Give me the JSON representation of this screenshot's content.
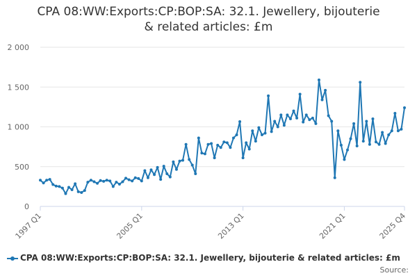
{
  "chart_data": {
    "type": "line",
    "title": "CPA 08:WW:Exports:CP:BOP:SA: 32.1. Jewellery, bijouterie & related articles: £m",
    "title_lines": [
      "CPA 08:WW:Exports:CP:BOP:SA: 32.1. Jewellery, bijouterie",
      "& related articles: £m"
    ],
    "xlabel": "",
    "ylabel": "",
    "ylim": [
      0,
      2000
    ],
    "yticks": [
      0,
      500,
      1000,
      1500,
      2000
    ],
    "ytick_labels": [
      "0",
      "500",
      "1 000",
      "1 500",
      "2 000"
    ],
    "xtick_labels": [
      {
        "label": "1997 Q1",
        "index": 0
      },
      {
        "label": "2005 Q1",
        "index": 32
      },
      {
        "label": "2013 Q1",
        "index": 64
      },
      {
        "label": "2021 Q1",
        "index": 96
      },
      {
        "label": "2025 Q4",
        "index": 115
      }
    ],
    "grid": true,
    "color": "#1f77b4",
    "series": [
      {
        "name": "CPA 08:WW:Exports:CP:BOP:SA: 32.1. Jewellery, bijouterie & related articles: £m",
        "values": [
          330,
          295,
          330,
          340,
          275,
          255,
          250,
          230,
          160,
          240,
          210,
          285,
          185,
          175,
          200,
          305,
          330,
          310,
          290,
          325,
          315,
          330,
          320,
          250,
          305,
          280,
          310,
          355,
          335,
          320,
          360,
          350,
          320,
          450,
          360,
          460,
          400,
          490,
          340,
          505,
          410,
          370,
          560,
          465,
          570,
          580,
          780,
          590,
          520,
          410,
          860,
          670,
          660,
          780,
          790,
          610,
          770,
          740,
          810,
          800,
          740,
          860,
          900,
          1065,
          610,
          800,
          720,
          950,
          820,
          990,
          900,
          920,
          1390,
          940,
          1070,
          1000,
          1150,
          1020,
          1150,
          1100,
          1200,
          1110,
          1410,
          1060,
          1150,
          1090,
          1110,
          1040,
          1590,
          1340,
          1460,
          1140,
          1070,
          360,
          950,
          770,
          590,
          710,
          850,
          1040,
          760,
          1560,
          820,
          1070,
          780,
          1100,
          810,
          780,
          930,
          790,
          900,
          950,
          1170,
          950,
          970,
          1240
        ]
      }
    ],
    "legend": "CPA 08:WW:Exports:CP:BOP:SA: 32.1. Jewellery, bijouterie & related articles: £m",
    "legend_position": "bottom-left"
  },
  "source_label": "Source:"
}
